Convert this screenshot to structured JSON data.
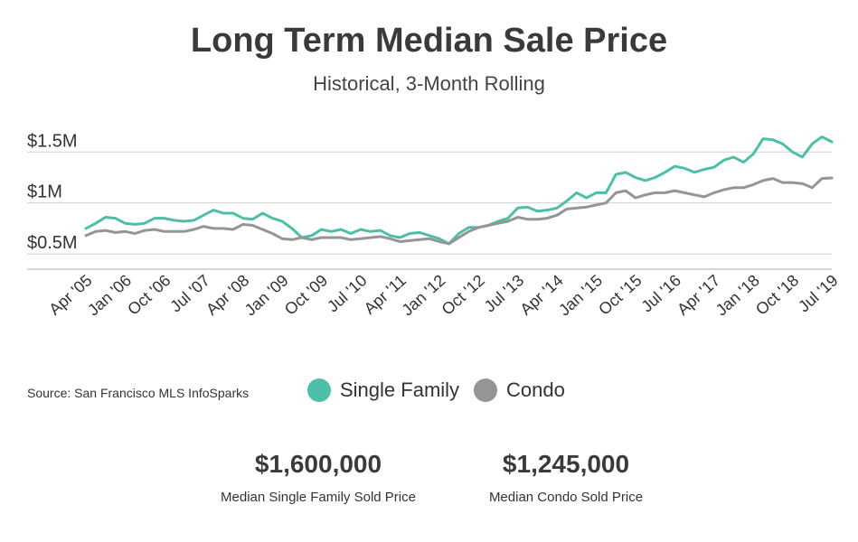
{
  "title": "Long Term Median Sale Price",
  "subtitle": "Historical, 3-Month Rolling",
  "source": "Source:  San Francisco MLS InfoSparks",
  "legend": [
    {
      "label": "Single Family",
      "color": "#4dbfa8"
    },
    {
      "label": "Condo",
      "color": "#959595"
    }
  ],
  "stats": [
    {
      "value": "$1,600,000",
      "label": "Median Single Family Sold Price"
    },
    {
      "value": "$1,245,000",
      "label": "Median Condo Sold Price"
    }
  ],
  "chart_data": {
    "type": "line",
    "title": "Long Term Median Sale Price",
    "subtitle": "Historical, 3-Month Rolling",
    "xlabel": "",
    "ylabel": "",
    "ylim": [
      0.35,
      1.6
    ],
    "x_range": [
      "Apr '05",
      "Jul '19"
    ],
    "yticks": [
      {
        "value": 0.5,
        "label": "$0.5M"
      },
      {
        "value": 1.0,
        "label": "$1M"
      },
      {
        "value": 1.5,
        "label": "$1.5M"
      }
    ],
    "xticks": [
      "Apr '05",
      "Jan '06",
      "Oct '06",
      "Jul '07",
      "Apr '08",
      "Jan '09",
      "Oct '09",
      "Jul '10",
      "Apr '11",
      "Jan '12",
      "Oct '12",
      "Jul '13",
      "Apr '14",
      "Jan '15",
      "Oct '15",
      "Jul '16",
      "Apr '17",
      "Jan '18",
      "Oct '18",
      "Jul '19"
    ],
    "grid": true,
    "legend_position": "bottom",
    "series": [
      {
        "name": "Single Family",
        "color": "#4dbfa8",
        "values": [
          0.75,
          0.8,
          0.86,
          0.85,
          0.8,
          0.79,
          0.8,
          0.85,
          0.85,
          0.83,
          0.82,
          0.83,
          0.88,
          0.93,
          0.9,
          0.9,
          0.85,
          0.84,
          0.9,
          0.85,
          0.82,
          0.75,
          0.66,
          0.68,
          0.74,
          0.72,
          0.74,
          0.7,
          0.74,
          0.72,
          0.73,
          0.68,
          0.66,
          0.7,
          0.71,
          0.68,
          0.65,
          0.6,
          0.7,
          0.76,
          0.76,
          0.78,
          0.82,
          0.85,
          0.95,
          0.96,
          0.92,
          0.93,
          0.95,
          1.02,
          1.1,
          1.05,
          1.1,
          1.1,
          1.28,
          1.3,
          1.25,
          1.22,
          1.25,
          1.3,
          1.36,
          1.34,
          1.3,
          1.33,
          1.35,
          1.42,
          1.45,
          1.4,
          1.48,
          1.63,
          1.62,
          1.58,
          1.5,
          1.45,
          1.58,
          1.65,
          1.6
        ]
      },
      {
        "name": "Condo",
        "color": "#959595",
        "values": [
          0.68,
          0.72,
          0.73,
          0.71,
          0.72,
          0.7,
          0.73,
          0.74,
          0.72,
          0.72,
          0.72,
          0.74,
          0.77,
          0.75,
          0.75,
          0.74,
          0.79,
          0.78,
          0.74,
          0.7,
          0.65,
          0.64,
          0.66,
          0.64,
          0.66,
          0.66,
          0.66,
          0.64,
          0.65,
          0.66,
          0.67,
          0.65,
          0.62,
          0.63,
          0.64,
          0.65,
          0.62,
          0.6,
          0.66,
          0.72,
          0.76,
          0.78,
          0.8,
          0.82,
          0.86,
          0.84,
          0.84,
          0.85,
          0.88,
          0.94,
          0.95,
          0.96,
          0.98,
          1.0,
          1.1,
          1.12,
          1.05,
          1.08,
          1.1,
          1.1,
          1.12,
          1.1,
          1.08,
          1.06,
          1.1,
          1.13,
          1.15,
          1.15,
          1.18,
          1.22,
          1.24,
          1.2,
          1.2,
          1.19,
          1.15,
          1.24,
          1.245
        ]
      }
    ]
  }
}
